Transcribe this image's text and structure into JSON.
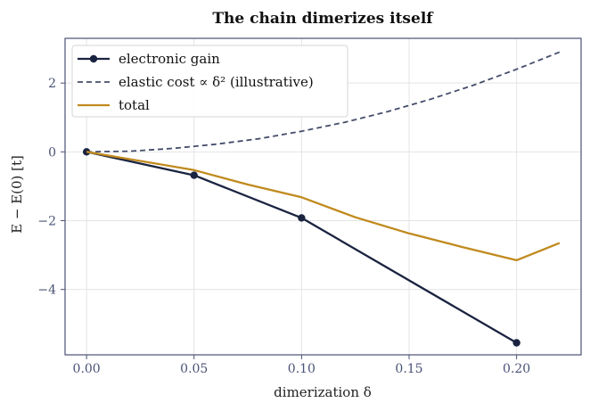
{
  "chart_data": {
    "type": "line",
    "title": "The chain dimerizes itself",
    "xlabel": "dimerization δ",
    "ylabel": "E − E(0)  [t]",
    "xlim": [
      -0.01,
      0.23
    ],
    "ylim": [
      -5.9,
      3.3
    ],
    "xticks": [
      0.0,
      0.05,
      0.1,
      0.15,
      0.2
    ],
    "xtick_labels": [
      "0.00",
      "0.05",
      "0.10",
      "0.15",
      "0.20"
    ],
    "yticks": [
      2,
      0,
      -2,
      -4
    ],
    "ytick_labels": [
      "2",
      "0",
      "−2",
      "−4"
    ],
    "grid": true,
    "legend_position": "top-left",
    "series": [
      {
        "name": "electronic gain",
        "color": "#1a2340",
        "style": "solid",
        "markers": true,
        "x": [
          0.0,
          0.05,
          0.1,
          0.2
        ],
        "y": [
          0.0,
          -0.68,
          -1.92,
          -5.55
        ]
      },
      {
        "name": "elastic cost ∝ δ² (illustrative)",
        "color": "#454d6b",
        "style": "dashed",
        "markers": false,
        "x": [
          0.0,
          0.02,
          0.04,
          0.06,
          0.08,
          0.1,
          0.12,
          0.14,
          0.16,
          0.18,
          0.2,
          0.22
        ],
        "y": [
          0.0,
          0.02,
          0.1,
          0.22,
          0.38,
          0.6,
          0.86,
          1.17,
          1.53,
          1.94,
          2.4,
          2.9
        ]
      },
      {
        "name": "total",
        "color": "#c08a1e",
        "style": "solid",
        "markers": false,
        "x": [
          0.0,
          0.05,
          0.075,
          0.1,
          0.125,
          0.15,
          0.175,
          0.2,
          0.22
        ],
        "y": [
          0.0,
          -0.53,
          -0.95,
          -1.32,
          -1.9,
          -2.37,
          -2.77,
          -3.15,
          -2.65
        ]
      }
    ]
  }
}
